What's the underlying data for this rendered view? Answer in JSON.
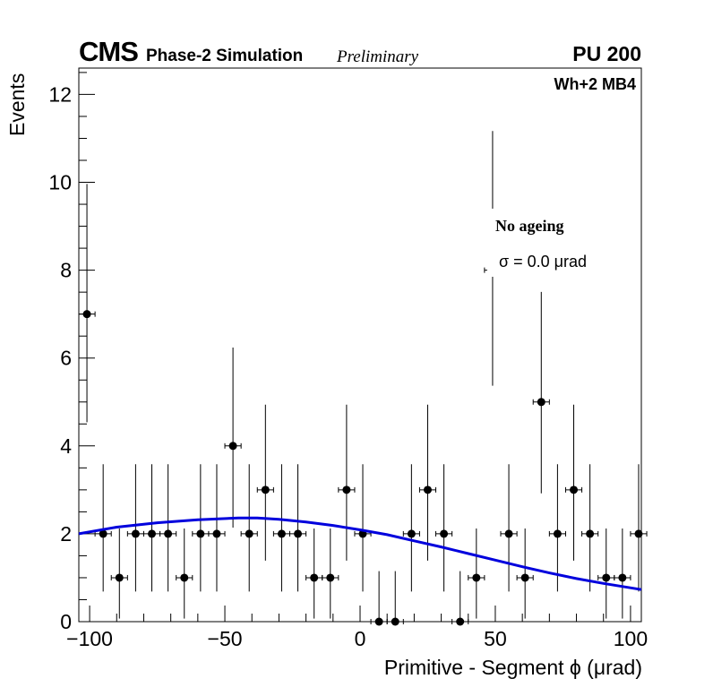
{
  "header": {
    "experiment": "CMS",
    "subtitle": "Phase-2 Simulation",
    "status": "Preliminary",
    "pileup": "PU 200",
    "station": "Wh+2 MB4"
  },
  "annotation": {
    "ageing": "No ageing",
    "sigma": "σ = 0.0  μrad"
  },
  "chart_data": {
    "type": "scatter",
    "title": "",
    "xlabel": "Primitive - Segment ϕ (μrad)",
    "ylabel": "Events",
    "xlim": [
      -104,
      104
    ],
    "ylim": [
      0,
      12.6
    ],
    "xticks": [
      -100,
      -50,
      0,
      50,
      100
    ],
    "xtick_labels": [
      "−100",
      "−50",
      "0",
      "50",
      "100"
    ],
    "yticks": [
      0,
      2,
      4,
      6,
      8,
      10,
      12
    ],
    "ytick_labels": [
      "0",
      "2",
      "4",
      "6",
      "8",
      "10",
      "12"
    ],
    "bin_width": 6,
    "series": [
      {
        "name": "data",
        "x": [
          -101,
          -95,
          -89,
          -83,
          -77,
          -71,
          -65,
          -59,
          -53,
          -47,
          -41,
          -35,
          -29,
          -23,
          -17,
          -11,
          -5,
          1,
          7,
          13,
          19,
          25,
          31,
          37,
          43,
          49,
          55,
          61,
          67,
          73,
          79,
          85,
          91,
          97,
          103
        ],
        "y": [
          7,
          2,
          1,
          2,
          2,
          2,
          1,
          2,
          2,
          4,
          2,
          3,
          2,
          2,
          1,
          1,
          3,
          2,
          0,
          0,
          2,
          3,
          2,
          0,
          1,
          8,
          2,
          1,
          5,
          2,
          3,
          2,
          1,
          1,
          2
        ],
        "color": "#000000"
      },
      {
        "name": "fit",
        "x": [
          -104,
          -90,
          -75,
          -60,
          -45,
          -38,
          -30,
          -20,
          -10,
          0,
          10,
          20,
          30,
          40,
          50,
          60,
          70,
          80,
          90,
          104
        ],
        "y": [
          2.0,
          2.15,
          2.25,
          2.32,
          2.36,
          2.36,
          2.33,
          2.27,
          2.19,
          2.09,
          1.98,
          1.84,
          1.7,
          1.55,
          1.4,
          1.25,
          1.11,
          0.98,
          0.87,
          0.73
        ],
        "color": "#0000dd"
      }
    ]
  }
}
